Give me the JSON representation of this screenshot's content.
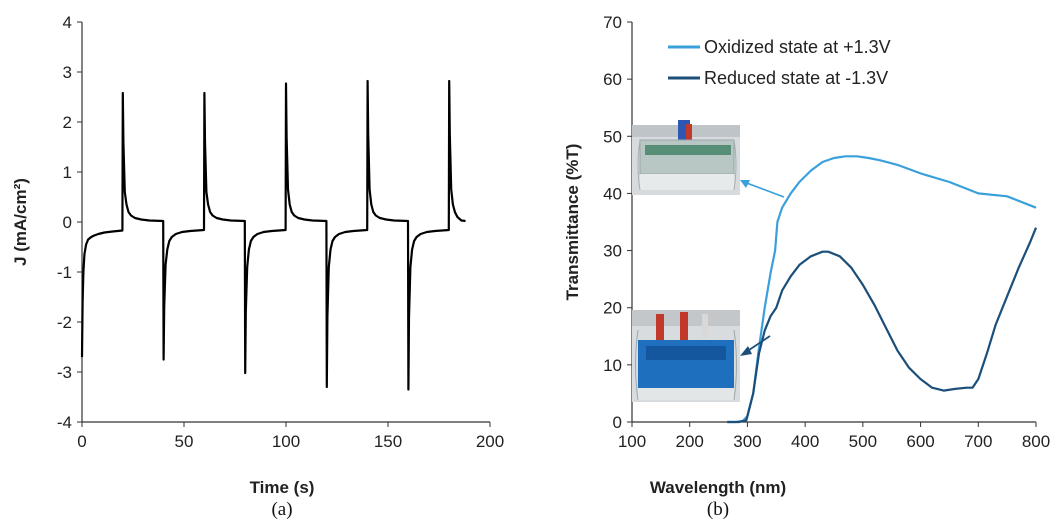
{
  "colors": {
    "oxidized": "#3aa0dc",
    "reduced": "#1b4f7a",
    "current": "#000000",
    "axis": "#333333"
  },
  "panel_labels": {
    "a": "(a)",
    "b": "(b)"
  },
  "chart_data": [
    {
      "type": "line",
      "id": "a",
      "xlabel": "Time (s)",
      "ylabel": "J (mA/cm²)",
      "xlim": [
        0,
        200
      ],
      "ylim": [
        -4,
        4
      ],
      "xticks": [
        0,
        50,
        100,
        150,
        200
      ],
      "yticks": [
        -4,
        -3,
        -2,
        -1,
        0,
        1,
        2,
        3,
        4
      ],
      "grid": false,
      "series": [
        {
          "x": [
            0,
            0.3,
            0.7,
            1.2,
            2,
            3,
            4.5,
            6,
            8,
            11,
            15,
            19.8,
            20,
            20.3,
            21,
            21.8,
            22.8,
            24,
            26,
            29,
            33,
            39.8,
            40,
            40.3,
            41,
            41.8,
            42.8,
            44,
            46,
            49,
            53,
            59.8,
            60,
            60.3,
            61,
            61.8,
            62.8,
            64,
            66,
            69,
            73,
            79.8,
            80,
            80.3,
            81,
            81.8,
            82.8,
            84,
            86,
            89,
            93,
            99.8,
            100,
            100.3,
            101,
            101.8,
            102.8,
            104,
            106,
            109,
            113,
            119.8,
            120,
            120.3,
            121,
            121.8,
            122.8,
            124,
            126,
            129,
            133,
            139.8,
            140,
            140.3,
            141,
            141.8,
            142.8,
            144,
            146,
            149,
            153,
            159.8,
            160,
            160.3,
            161,
            161.8,
            162.8,
            164,
            166,
            169,
            173,
            179.8,
            180,
            180.3,
            181,
            181.8,
            182.8,
            184,
            186,
            188
          ],
          "y": [
            -2.7,
            -1.6,
            -1.0,
            -0.65,
            -0.45,
            -0.35,
            -0.3,
            -0.27,
            -0.24,
            -0.21,
            -0.19,
            -0.17,
            2.58,
            1.6,
            0.6,
            0.35,
            0.2,
            0.13,
            0.08,
            0.05,
            0.03,
            0.02,
            -2.75,
            -1.7,
            -0.85,
            -0.55,
            -0.38,
            -0.3,
            -0.24,
            -0.2,
            -0.18,
            -0.16,
            2.58,
            1.6,
            0.6,
            0.35,
            0.2,
            0.13,
            0.08,
            0.05,
            0.03,
            0.02,
            -3.02,
            -1.8,
            -0.9,
            -0.55,
            -0.38,
            -0.3,
            -0.24,
            -0.2,
            -0.18,
            -0.16,
            2.77,
            1.7,
            0.65,
            0.35,
            0.2,
            0.13,
            0.08,
            0.05,
            0.03,
            0.02,
            -3.3,
            -1.9,
            -0.9,
            -0.55,
            -0.38,
            -0.3,
            -0.24,
            -0.2,
            -0.18,
            -0.16,
            2.82,
            1.75,
            0.65,
            0.35,
            0.2,
            0.13,
            0.08,
            0.05,
            0.03,
            0.02,
            -3.35,
            -1.9,
            -0.9,
            -0.55,
            -0.38,
            -0.3,
            -0.24,
            -0.2,
            -0.18,
            -0.16,
            2.82,
            1.75,
            0.65,
            0.35,
            0.2,
            0.1,
            0.03,
            0.02
          ]
        }
      ]
    },
    {
      "type": "line",
      "id": "b",
      "xlabel": "Wavelength (nm)",
      "ylabel": "Transmittance (%T)",
      "xlim": [
        100,
        800
      ],
      "ylim": [
        0,
        70
      ],
      "xticks": [
        100,
        200,
        300,
        400,
        500,
        600,
        700,
        800
      ],
      "yticks": [
        0,
        10,
        20,
        30,
        40,
        50,
        60,
        70
      ],
      "grid": false,
      "legend": "top-center",
      "series": [
        {
          "name": "Oxidized state at +1.3V",
          "color_key": "oxidized",
          "x": [
            265,
            280,
            292,
            300,
            310,
            320,
            330,
            340,
            348,
            352,
            360,
            375,
            390,
            410,
            430,
            450,
            470,
            490,
            510,
            530,
            560,
            600,
            650,
            700,
            750,
            800
          ],
          "y": [
            0,
            0,
            0.2,
            1,
            5,
            13,
            20,
            26,
            30,
            35,
            37.5,
            40,
            42,
            44,
            45.5,
            46.2,
            46.5,
            46.5,
            46.2,
            45.8,
            45,
            43.5,
            42,
            40,
            39.5,
            37.5
          ]
        },
        {
          "name": "Reduced state at -1.3V",
          "color_key": "reduced",
          "x": [
            265,
            285,
            298,
            310,
            320,
            330,
            340,
            350,
            360,
            375,
            390,
            410,
            430,
            440,
            460,
            480,
            500,
            520,
            540,
            560,
            580,
            600,
            620,
            640,
            660,
            680,
            690,
            700,
            715,
            730,
            750,
            770,
            790,
            800
          ],
          "y": [
            0,
            0,
            0.3,
            5,
            12,
            16,
            18.5,
            20,
            23,
            25.5,
            27.5,
            29,
            29.8,
            29.8,
            29,
            27,
            24,
            20.5,
            16.5,
            12.5,
            9.5,
            7.5,
            6,
            5.5,
            5.8,
            6,
            6,
            7.5,
            12,
            17,
            22,
            27,
            31.5,
            34
          ]
        }
      ]
    }
  ]
}
